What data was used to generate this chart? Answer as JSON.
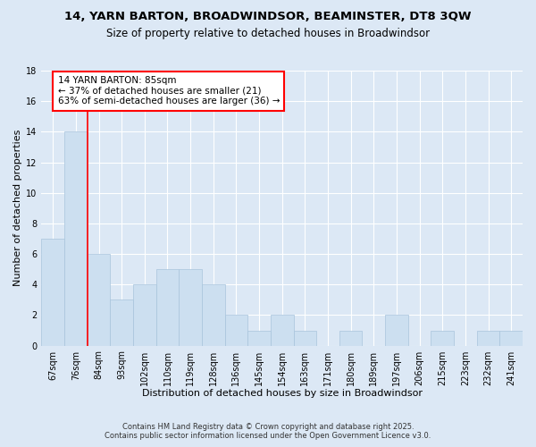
{
  "title": "14, YARN BARTON, BROADWINDSOR, BEAMINSTER, DT8 3QW",
  "subtitle": "Size of property relative to detached houses in Broadwindsor",
  "xlabel": "Distribution of detached houses by size in Broadwindsor",
  "ylabel": "Number of detached properties",
  "categories": [
    "67sqm",
    "76sqm",
    "84sqm",
    "93sqm",
    "102sqm",
    "110sqm",
    "119sqm",
    "128sqm",
    "136sqm",
    "145sqm",
    "154sqm",
    "163sqm",
    "171sqm",
    "180sqm",
    "189sqm",
    "197sqm",
    "206sqm",
    "215sqm",
    "223sqm",
    "232sqm",
    "241sqm"
  ],
  "values": [
    7,
    14,
    6,
    3,
    4,
    5,
    5,
    4,
    2,
    1,
    2,
    1,
    0,
    1,
    0,
    2,
    0,
    1,
    0,
    1,
    1
  ],
  "bar_color": "#ccdff0",
  "bar_edgecolor": "#a8c4dc",
  "bar_linewidth": 0.5,
  "vline_color": "red",
  "vline_linewidth": 1.2,
  "annotation_lines": [
    "14 YARN BARTON: 85sqm",
    "← 37% of detached houses are smaller (21)",
    "63% of semi-detached houses are larger (36) →"
  ],
  "annotation_box_color": "white",
  "annotation_box_edgecolor": "red",
  "ylim": [
    0,
    18
  ],
  "yticks": [
    0,
    2,
    4,
    6,
    8,
    10,
    12,
    14,
    16,
    18
  ],
  "background_color": "#dce8f5",
  "grid_color": "white",
  "footer_line1": "Contains HM Land Registry data © Crown copyright and database right 2025.",
  "footer_line2": "Contains public sector information licensed under the Open Government Licence v3.0.",
  "title_fontsize": 9.5,
  "subtitle_fontsize": 8.5,
  "xlabel_fontsize": 8,
  "ylabel_fontsize": 8,
  "tick_fontsize": 7,
  "annotation_fontsize": 7.5,
  "footer_fontsize": 6
}
